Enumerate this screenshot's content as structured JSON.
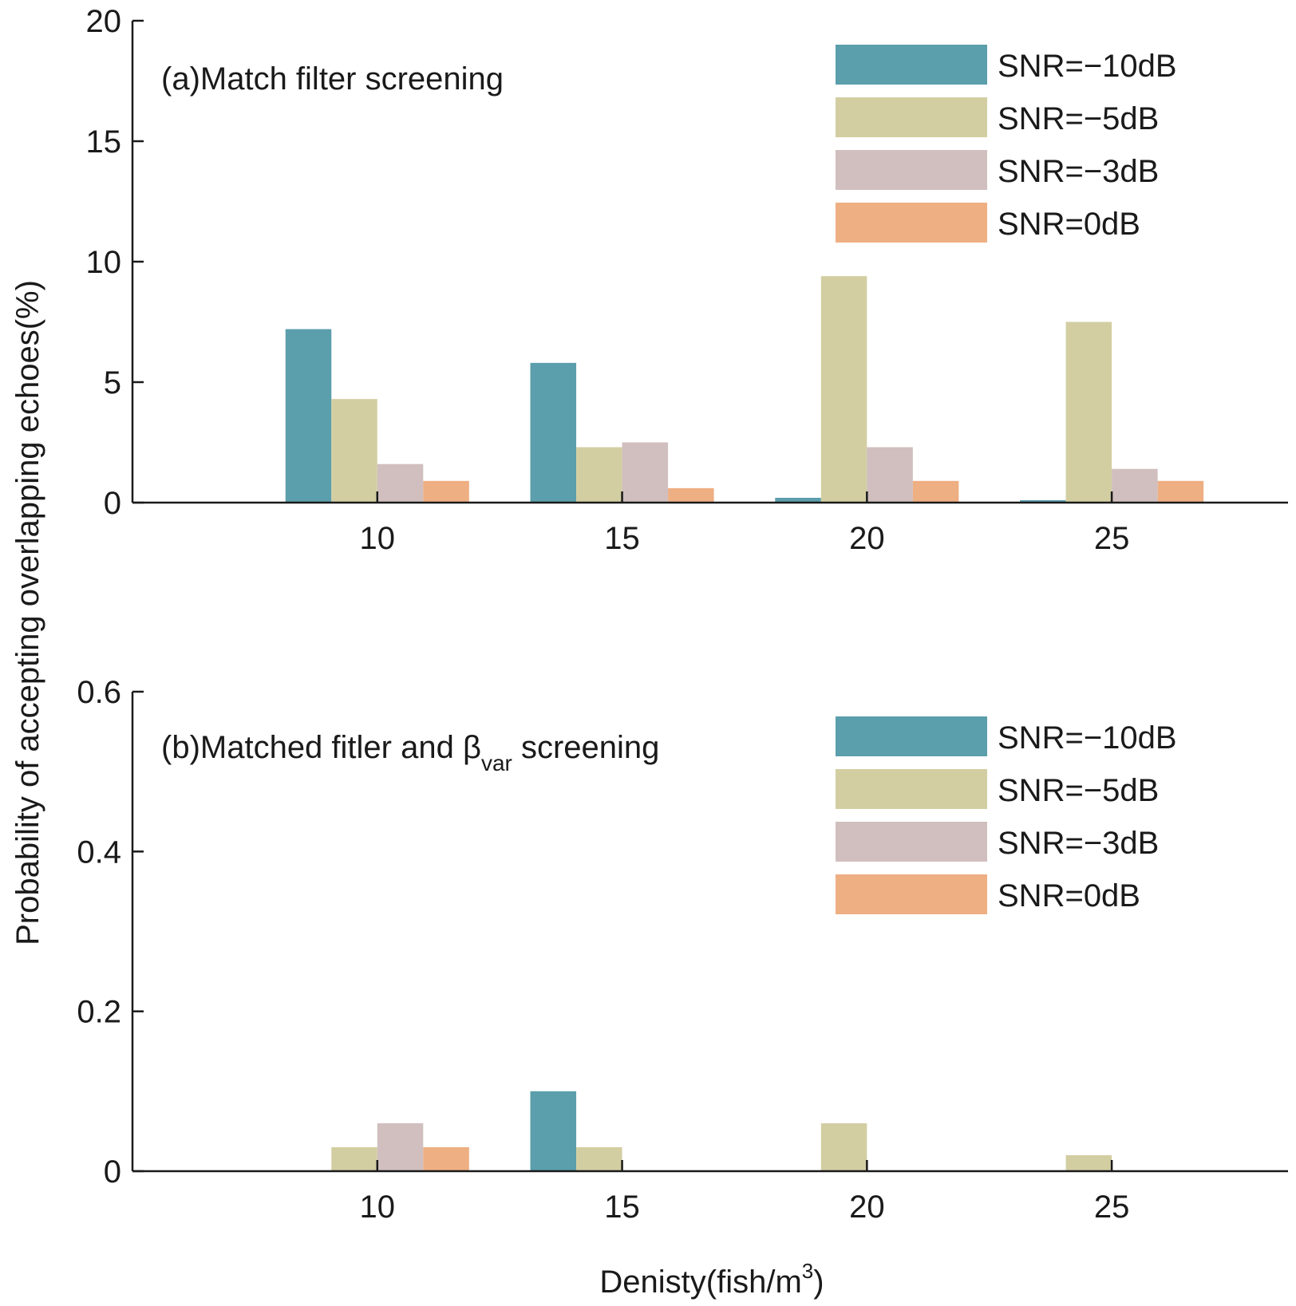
{
  "figure": {
    "ylabel": "Probability of accepting overlapping echoes(%)",
    "xlabel": {
      "text": "Denisty(fish/m",
      "superscript": "3",
      "suffix": ")"
    }
  },
  "colors": {
    "series": [
      "#5b9eac",
      "#d3cea2",
      "#d0bfbe",
      "#eeaf83"
    ],
    "axis": "#1a1a1a"
  },
  "chart_data": [
    {
      "type": "bar",
      "title": "(a)Match filter screening",
      "categories": [
        "10",
        "15",
        "20",
        "25"
      ],
      "xlim": [
        5,
        28.6
      ],
      "ylim": [
        0,
        20
      ],
      "yticks": [
        "0",
        "5",
        "10",
        "15",
        "20"
      ],
      "legend_position": "top-right",
      "series": [
        {
          "name": "SNR=−10dB",
          "values": [
            7.2,
            5.8,
            0.2,
            0.1
          ]
        },
        {
          "name": "SNR=−5dB",
          "values": [
            4.3,
            2.3,
            9.4,
            7.5
          ]
        },
        {
          "name": "SNR=−3dB",
          "values": [
            1.6,
            2.5,
            2.3,
            1.4
          ]
        },
        {
          "name": "SNR=0dB",
          "values": [
            0.9,
            0.6,
            0.9,
            0.9
          ]
        }
      ]
    },
    {
      "type": "bar",
      "title": {
        "prefix": "(b)Matched fitler and β",
        "subscript": "var",
        "suffix": " screening"
      },
      "categories": [
        "10",
        "15",
        "20",
        "25"
      ],
      "xlim": [
        5,
        28.6
      ],
      "ylim": [
        0,
        0.6
      ],
      "yticks": [
        "0",
        "0.2",
        "0.4",
        "0.6"
      ],
      "legend_position": "top-right",
      "series": [
        {
          "name": "SNR=−10dB",
          "values": [
            0,
            0.1,
            0,
            0
          ]
        },
        {
          "name": "SNR=−5dB",
          "values": [
            0.03,
            0.03,
            0.06,
            0.02
          ]
        },
        {
          "name": "SNR=−3dB",
          "values": [
            0.06,
            0,
            0,
            0
          ]
        },
        {
          "name": "SNR=0dB",
          "values": [
            0.03,
            0,
            0,
            0
          ]
        }
      ]
    }
  ]
}
